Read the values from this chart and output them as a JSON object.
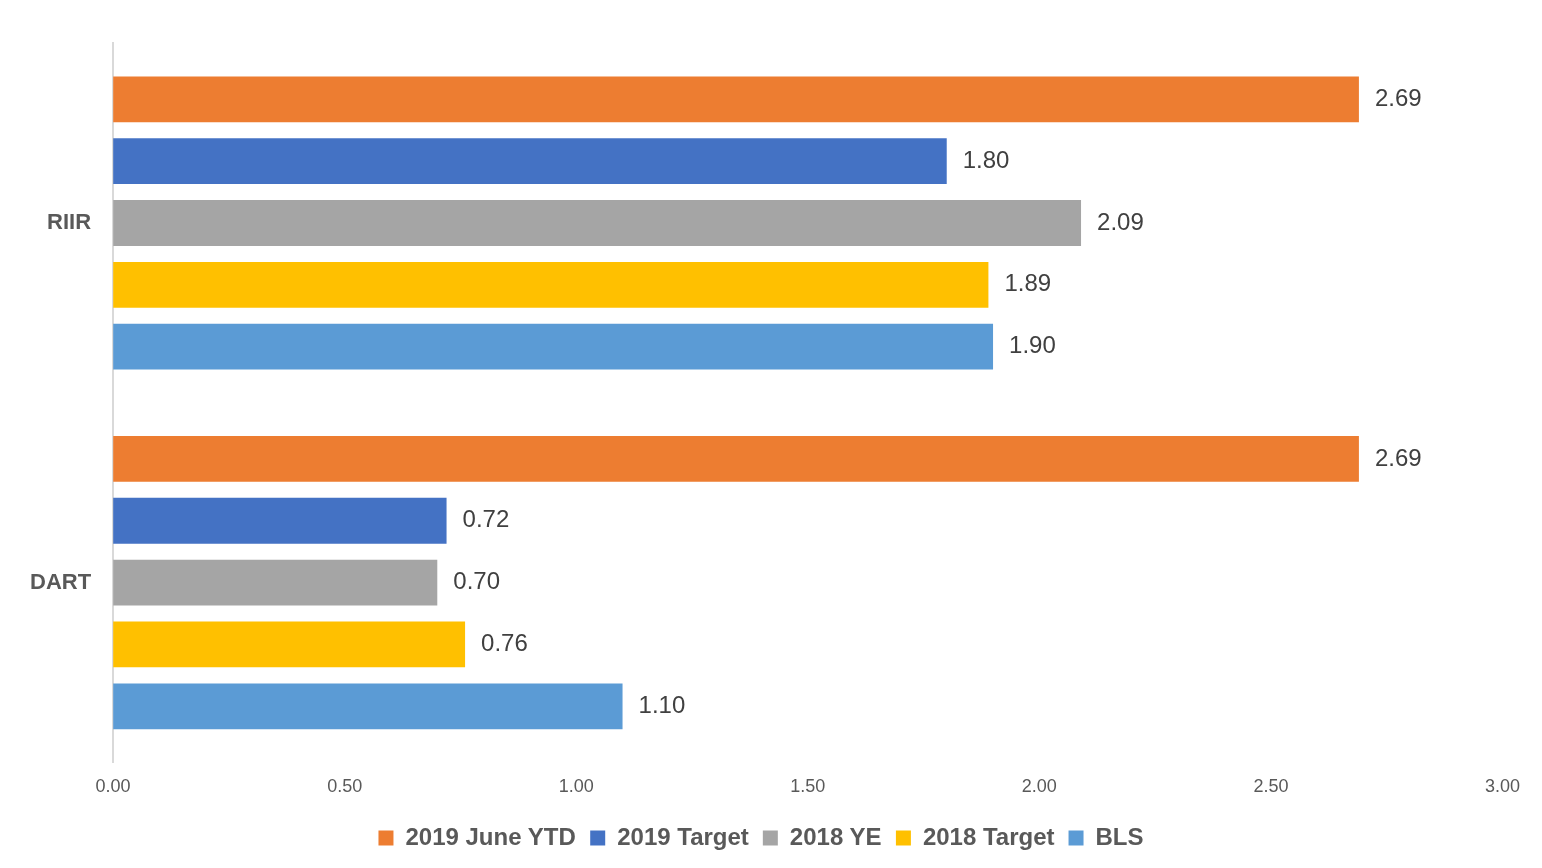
{
  "chart_data": {
    "type": "bar",
    "orientation": "horizontal",
    "categories": [
      "RIIR",
      "DART"
    ],
    "series": [
      {
        "name": "2019 June YTD",
        "color": "#ed7d31",
        "values": [
          2.69,
          2.69
        ]
      },
      {
        "name": "2019 Target",
        "color": "#4472c4",
        "values": [
          1.8,
          0.72
        ]
      },
      {
        "name": "2018 YE",
        "color": "#a5a5a5",
        "values": [
          2.09,
          0.7
        ]
      },
      {
        "name": "2018 Target",
        "color": "#ffc000",
        "values": [
          1.89,
          0.76
        ]
      },
      {
        "name": "BLS",
        "color": "#5b9bd5",
        "values": [
          1.9,
          1.1
        ]
      }
    ],
    "xlim": [
      0,
      3
    ],
    "xticks": [
      {
        "value": 0,
        "label": "0.00"
      },
      {
        "value": 0.5,
        "label": "0.50"
      },
      {
        "value": 1,
        "label": "1.00"
      },
      {
        "value": 1.5,
        "label": "1.50"
      },
      {
        "value": 2,
        "label": "2.00"
      },
      {
        "value": 2.5,
        "label": "2.50"
      },
      {
        "value": 3,
        "label": "3.00"
      }
    ],
    "value_labels": [
      [
        "2.69",
        "2.69"
      ],
      [
        "1.80",
        "0.72"
      ],
      [
        "2.09",
        "0.70"
      ],
      [
        "1.89",
        "0.76"
      ],
      [
        "1.90",
        "1.10"
      ]
    ],
    "grid": false,
    "legend": "bottom"
  }
}
